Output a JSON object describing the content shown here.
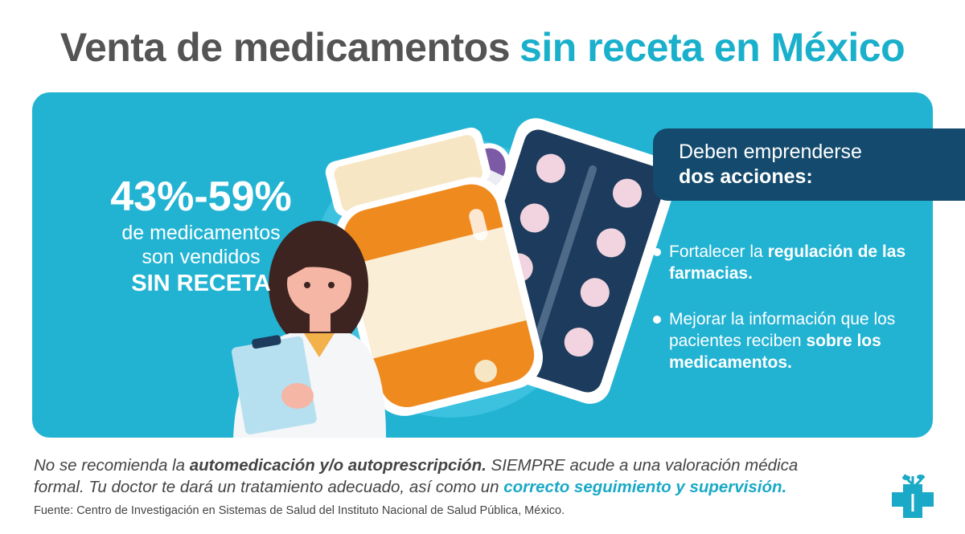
{
  "title": {
    "plain": "Venta de medicamentos",
    "highlight": "sin receta en México"
  },
  "stat": {
    "value": "43%-59%",
    "line1": "de medicamentos",
    "line2": "son vendidos",
    "emphasis": "SIN RECETA"
  },
  "actions": {
    "heading": "Deben emprenderse",
    "heading_bold": "dos acciones:",
    "items": [
      [
        {
          "text": "Fortalecer la",
          "bold": false
        },
        {
          "text": "regulación de las farmacias.",
          "bold": true
        }
      ],
      [
        {
          "text": "Mejorar la información que los pacientes reciben",
          "bold": false
        },
        {
          "text": "sobre los medicamentos.",
          "bold": true
        }
      ]
    ]
  },
  "disclaimer": [
    {
      "text": "No se recomienda la",
      "bold": false
    },
    {
      "text": "automedicación y/o autoprescripción.",
      "bold": true
    },
    {
      "text": "SIEMPRE acude a una valoración médica formal. Tu doctor te dará un tratamiento adecuado, así como un",
      "bold": false
    },
    {
      "text": "correcto seguimiento y supervisión.",
      "bold": true,
      "color": "#1aa9c6"
    }
  ],
  "source": "Fuente: Centro de Investigación en Sistemas de Salud del Instituto Nacional de Salud Pública, México."
}
